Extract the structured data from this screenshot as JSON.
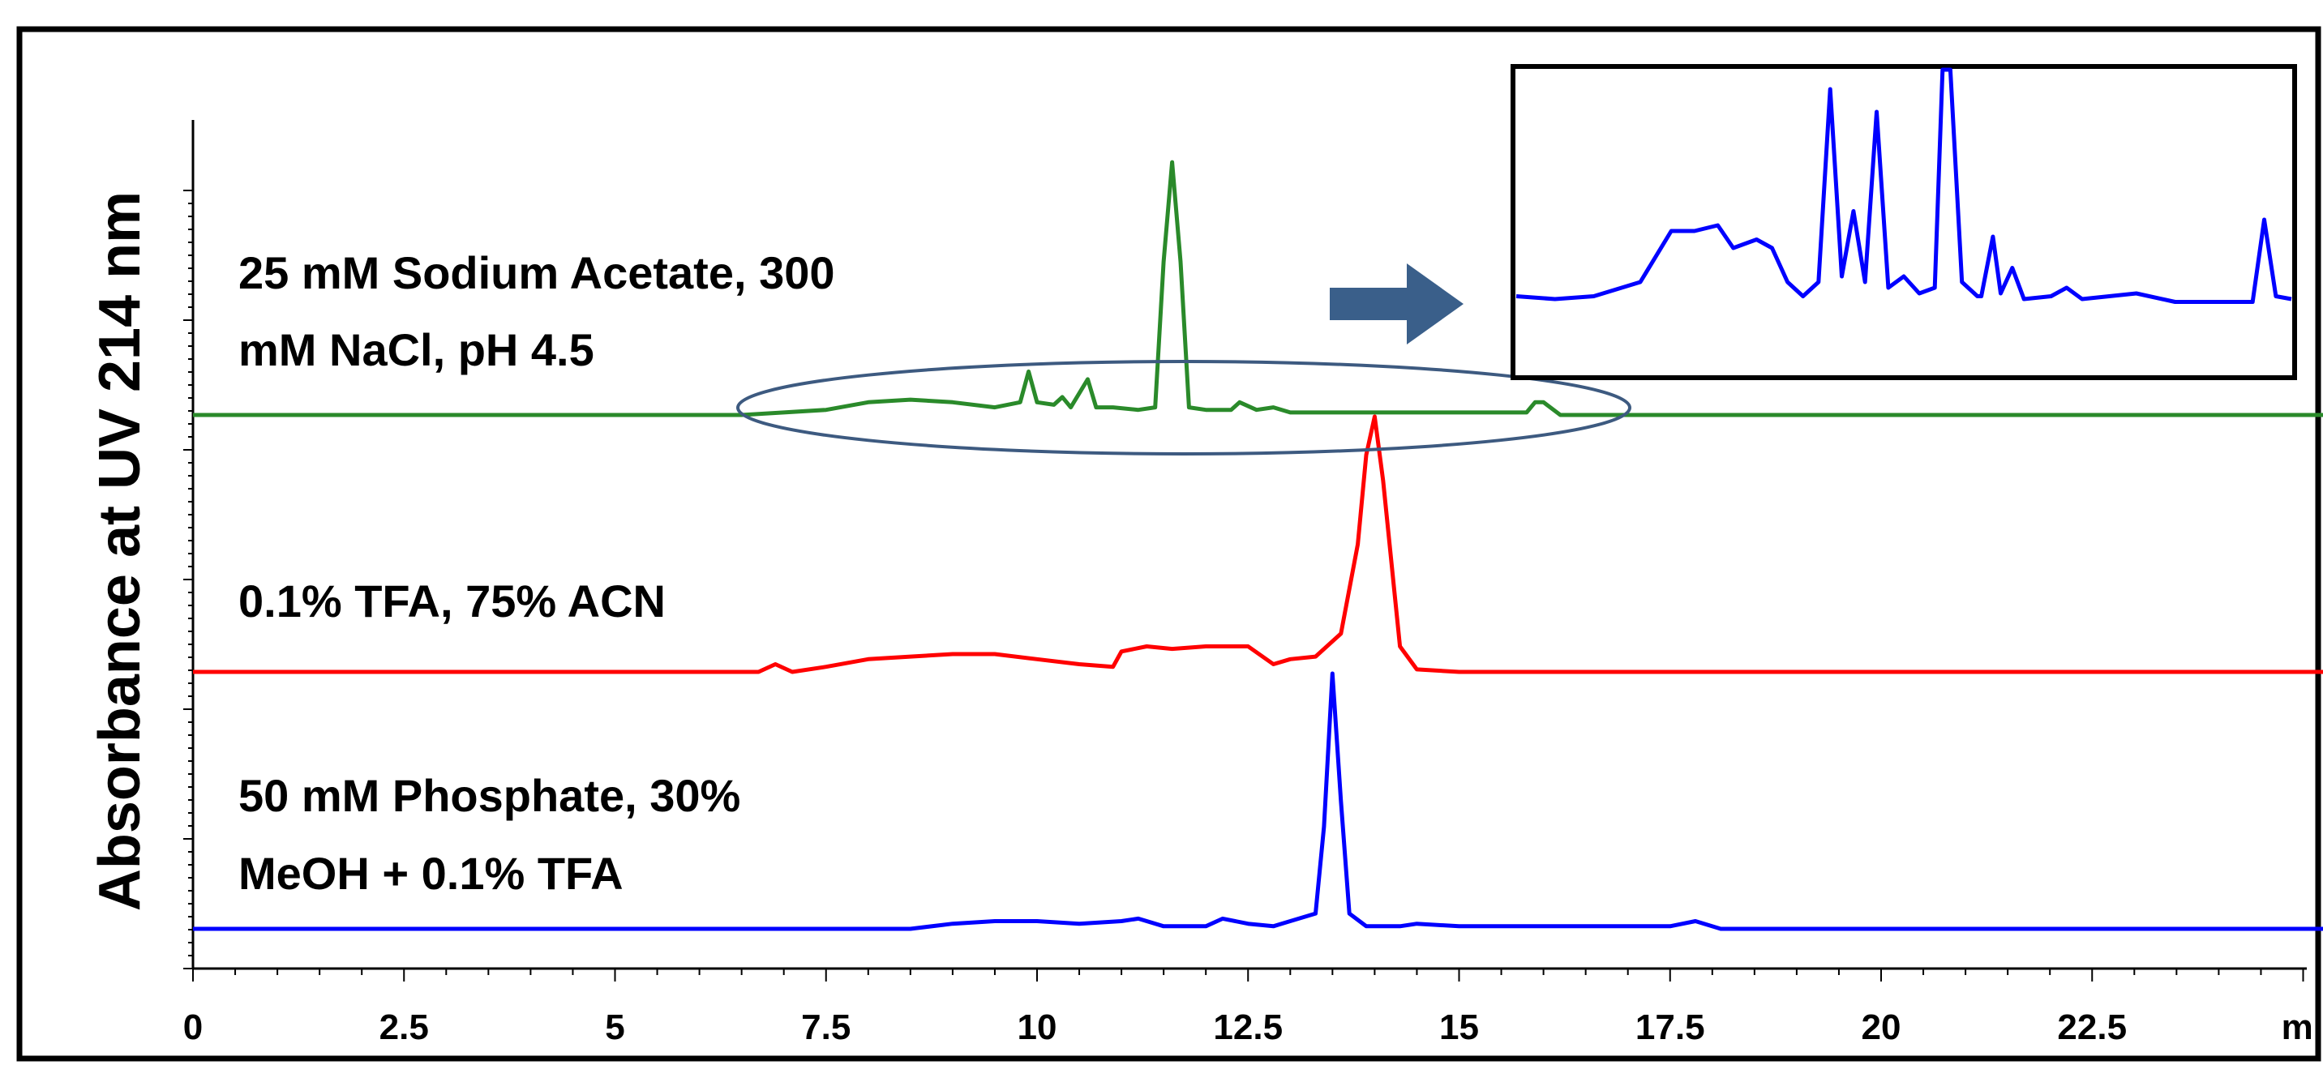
{
  "chart_data": {
    "type": "line",
    "ylabel": "Absorbance at UV 214 nm",
    "xlabel": "",
    "x_unit": "mi",
    "xlim": [
      0,
      25.5
    ],
    "x_ticks": [
      0,
      2.5,
      5,
      7.5,
      10,
      12.5,
      15,
      17.5,
      20,
      22.5
    ],
    "x_tick_labels": [
      "0",
      "2.5",
      "5",
      "7.5",
      "10",
      "12.5",
      "15",
      "17.5",
      "20",
      "22.5"
    ],
    "y_ticks_visible": true,
    "y_tick_labels": [],
    "grid": false,
    "legend": "none",
    "series": [
      {
        "label_lines": [
          "25 mM Sodium Acetate, 300",
          "mM NaCl, pH 4.5"
        ],
        "color": "#2a8a2a",
        "baseline": 2,
        "x": [
          0,
          6.5,
          7.0,
          7.5,
          8.0,
          8.5,
          9.0,
          9.5,
          9.8,
          9.9,
          10.0,
          10.2,
          10.3,
          10.4,
          10.6,
          10.7,
          10.9,
          11.2,
          11.4,
          11.5,
          11.6,
          11.7,
          11.8,
          12.0,
          12.3,
          12.4,
          12.6,
          12.8,
          13.0,
          13.5,
          14.0,
          15.0,
          15.8,
          15.9,
          16.0,
          16.2,
          17.0,
          25.5
        ],
        "y": [
          0,
          0,
          0.01,
          0.02,
          0.05,
          0.06,
          0.05,
          0.03,
          0.05,
          0.17,
          0.05,
          0.04,
          0.07,
          0.03,
          0.14,
          0.03,
          0.03,
          0.02,
          0.03,
          0.6,
          0.99,
          0.6,
          0.03,
          0.02,
          0.02,
          0.05,
          0.02,
          0.03,
          0.01,
          0.01,
          0.01,
          0.01,
          0.01,
          0.05,
          0.05,
          0,
          0,
          0
        ]
      },
      {
        "label_lines": [
          "0.1% TFA, 75% ACN"
        ],
        "color": "#ff0000",
        "baseline": 1,
        "x": [
          0,
          6.7,
          6.9,
          7.1,
          7.5,
          8.0,
          8.5,
          9.0,
          9.5,
          10.0,
          10.5,
          10.9,
          11.0,
          11.3,
          11.6,
          12.0,
          12.5,
          12.8,
          13.0,
          13.3,
          13.6,
          13.8,
          13.9,
          14.0,
          14.1,
          14.3,
          14.5,
          15.0,
          25.5
        ],
        "y": [
          0,
          0,
          0.03,
          0,
          0.02,
          0.05,
          0.06,
          0.07,
          0.07,
          0.05,
          0.03,
          0.02,
          0.08,
          0.1,
          0.09,
          0.1,
          0.1,
          0.03,
          0.05,
          0.06,
          0.15,
          0.5,
          0.85,
          1.0,
          0.75,
          0.1,
          0.01,
          0,
          0
        ]
      },
      {
        "label_lines": [
          "50 mM Phosphate, 30%",
          "MeOH + 0.1% TFA"
        ],
        "color": "#0000ff",
        "baseline": 0,
        "x": [
          0,
          8.5,
          9.0,
          9.5,
          10.0,
          10.5,
          11.0,
          11.2,
          11.5,
          12.0,
          12.2,
          12.5,
          12.8,
          13.0,
          13.3,
          13.4,
          13.5,
          13.6,
          13.7,
          13.9,
          14.3,
          14.5,
          15.0,
          17.5,
          17.8,
          18.1,
          25.5
        ],
        "y": [
          0,
          0,
          0.02,
          0.03,
          0.03,
          0.02,
          0.03,
          0.04,
          0.01,
          0.01,
          0.04,
          0.02,
          0.01,
          0.03,
          0.06,
          0.4,
          1.0,
          0.5,
          0.06,
          0.01,
          0.01,
          0.02,
          0.01,
          0.01,
          0.03,
          0,
          0
        ]
      }
    ],
    "inset": {
      "description_of_content": "zoom of ellipse region of green trace",
      "color": "#0000ff",
      "points": [
        [
          0,
          0.05
        ],
        [
          0.05,
          0.04
        ],
        [
          0.1,
          0.05
        ],
        [
          0.16,
          0.1
        ],
        [
          0.2,
          0.28
        ],
        [
          0.23,
          0.28
        ],
        [
          0.26,
          0.3
        ],
        [
          0.28,
          0.22
        ],
        [
          0.31,
          0.25
        ],
        [
          0.33,
          0.22
        ],
        [
          0.35,
          0.1
        ],
        [
          0.37,
          0.05
        ],
        [
          0.39,
          0.1
        ],
        [
          0.405,
          0.78
        ],
        [
          0.42,
          0.12
        ],
        [
          0.435,
          0.35
        ],
        [
          0.45,
          0.1
        ],
        [
          0.465,
          0.7
        ],
        [
          0.48,
          0.08
        ],
        [
          0.5,
          0.12
        ],
        [
          0.52,
          0.06
        ],
        [
          0.54,
          0.08
        ],
        [
          0.55,
          1.3
        ],
        [
          0.56,
          1.3
        ],
        [
          0.575,
          0.1
        ],
        [
          0.595,
          0.05
        ],
        [
          0.6,
          0.05
        ],
        [
          0.615,
          0.26
        ],
        [
          0.625,
          0.06
        ],
        [
          0.64,
          0.15
        ],
        [
          0.655,
          0.04
        ],
        [
          0.69,
          0.05
        ],
        [
          0.71,
          0.08
        ],
        [
          0.73,
          0.04
        ],
        [
          0.8,
          0.06
        ],
        [
          0.85,
          0.03
        ],
        [
          0.95,
          0.03
        ],
        [
          0.965,
          0.32
        ],
        [
          0.98,
          0.05
        ],
        [
          1.0,
          0.04
        ]
      ]
    }
  }
}
